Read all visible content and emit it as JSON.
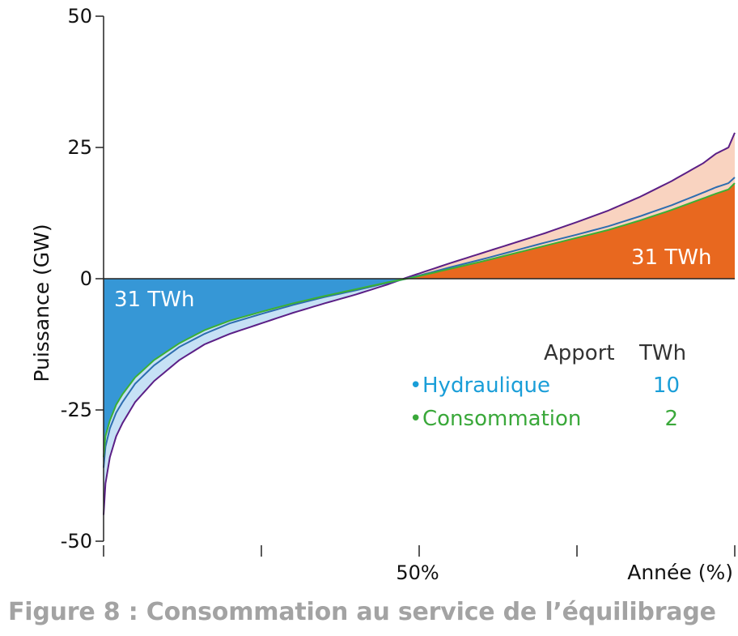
{
  "chart_data": {
    "type": "area",
    "ylabel": "Puissance (GW)",
    "xlabel": "Année (%)",
    "ylim": [
      -50,
      50
    ],
    "xlim": [
      0,
      100
    ],
    "yticks": [
      "50",
      "25",
      "0",
      "-25",
      "-50"
    ],
    "xtick_labels": [
      {
        "x": 50,
        "label": "50%"
      }
    ],
    "xticks": [
      0,
      25,
      50,
      75,
      100
    ],
    "x": [
      0,
      0.3,
      1,
      2,
      3,
      5,
      8,
      12,
      16,
      20,
      25,
      30,
      35,
      40,
      45,
      48,
      50,
      55,
      60,
      65,
      70,
      75,
      80,
      85,
      90,
      95,
      97,
      99,
      100
    ],
    "series": [
      {
        "key": "purple",
        "color": "#5b1f86",
        "values": [
          -45,
          -39,
          -34,
          -30,
          -27.5,
          -23.5,
          -19.5,
          -15.5,
          -12.5,
          -10.5,
          -8.5,
          -6.5,
          -4.7,
          -3.0,
          -1.1,
          0.2,
          1.0,
          3.0,
          4.9,
          6.8,
          8.7,
          10.8,
          13.0,
          15.6,
          18.6,
          22.0,
          23.8,
          25.0,
          27.8
        ]
      },
      {
        "key": "blue",
        "color": "#2d6db0",
        "values": [
          -36,
          -32,
          -28.5,
          -25.5,
          -23.5,
          -20,
          -16.5,
          -13,
          -10.5,
          -8.5,
          -6.7,
          -5,
          -3.5,
          -2.2,
          -0.8,
          0,
          0.6,
          2.2,
          3.7,
          5.3,
          6.9,
          8.4,
          10.0,
          11.9,
          14.0,
          16.4,
          17.4,
          18.2,
          19.3
        ]
      },
      {
        "key": "green",
        "color": "#3bb034",
        "values": [
          -34,
          -30,
          -27,
          -24,
          -22,
          -18.8,
          -15.5,
          -12.3,
          -9.8,
          -8.0,
          -6.3,
          -4.7,
          -3.3,
          -2.0,
          -0.7,
          0,
          0.5,
          1.9,
          3.3,
          4.8,
          6.3,
          7.8,
          9.3,
          11.1,
          13.1,
          15.3,
          16.2,
          17.0,
          18.2
        ]
      }
    ],
    "fills": {
      "negative": "#3697d6",
      "negative_light": "#c6e1f5",
      "positive": "#e8681f",
      "positive_light": "#f9d3c0",
      "axis": "#222222"
    },
    "area_labels": {
      "negative": "31 TWh",
      "positive": "31 TWh"
    },
    "legend": {
      "header_apport": "Apport",
      "header_twh": "TWh",
      "items": [
        {
          "bullet": "•",
          "label": "Hydraulique",
          "value": "10",
          "color": "#1a9ed8"
        },
        {
          "bullet": "•",
          "label": "Consommation",
          "value": "2",
          "color": "#3aa83a"
        }
      ]
    },
    "grid": false
  },
  "caption": "Figure 8 : Consommation au service de l’équilibrage"
}
